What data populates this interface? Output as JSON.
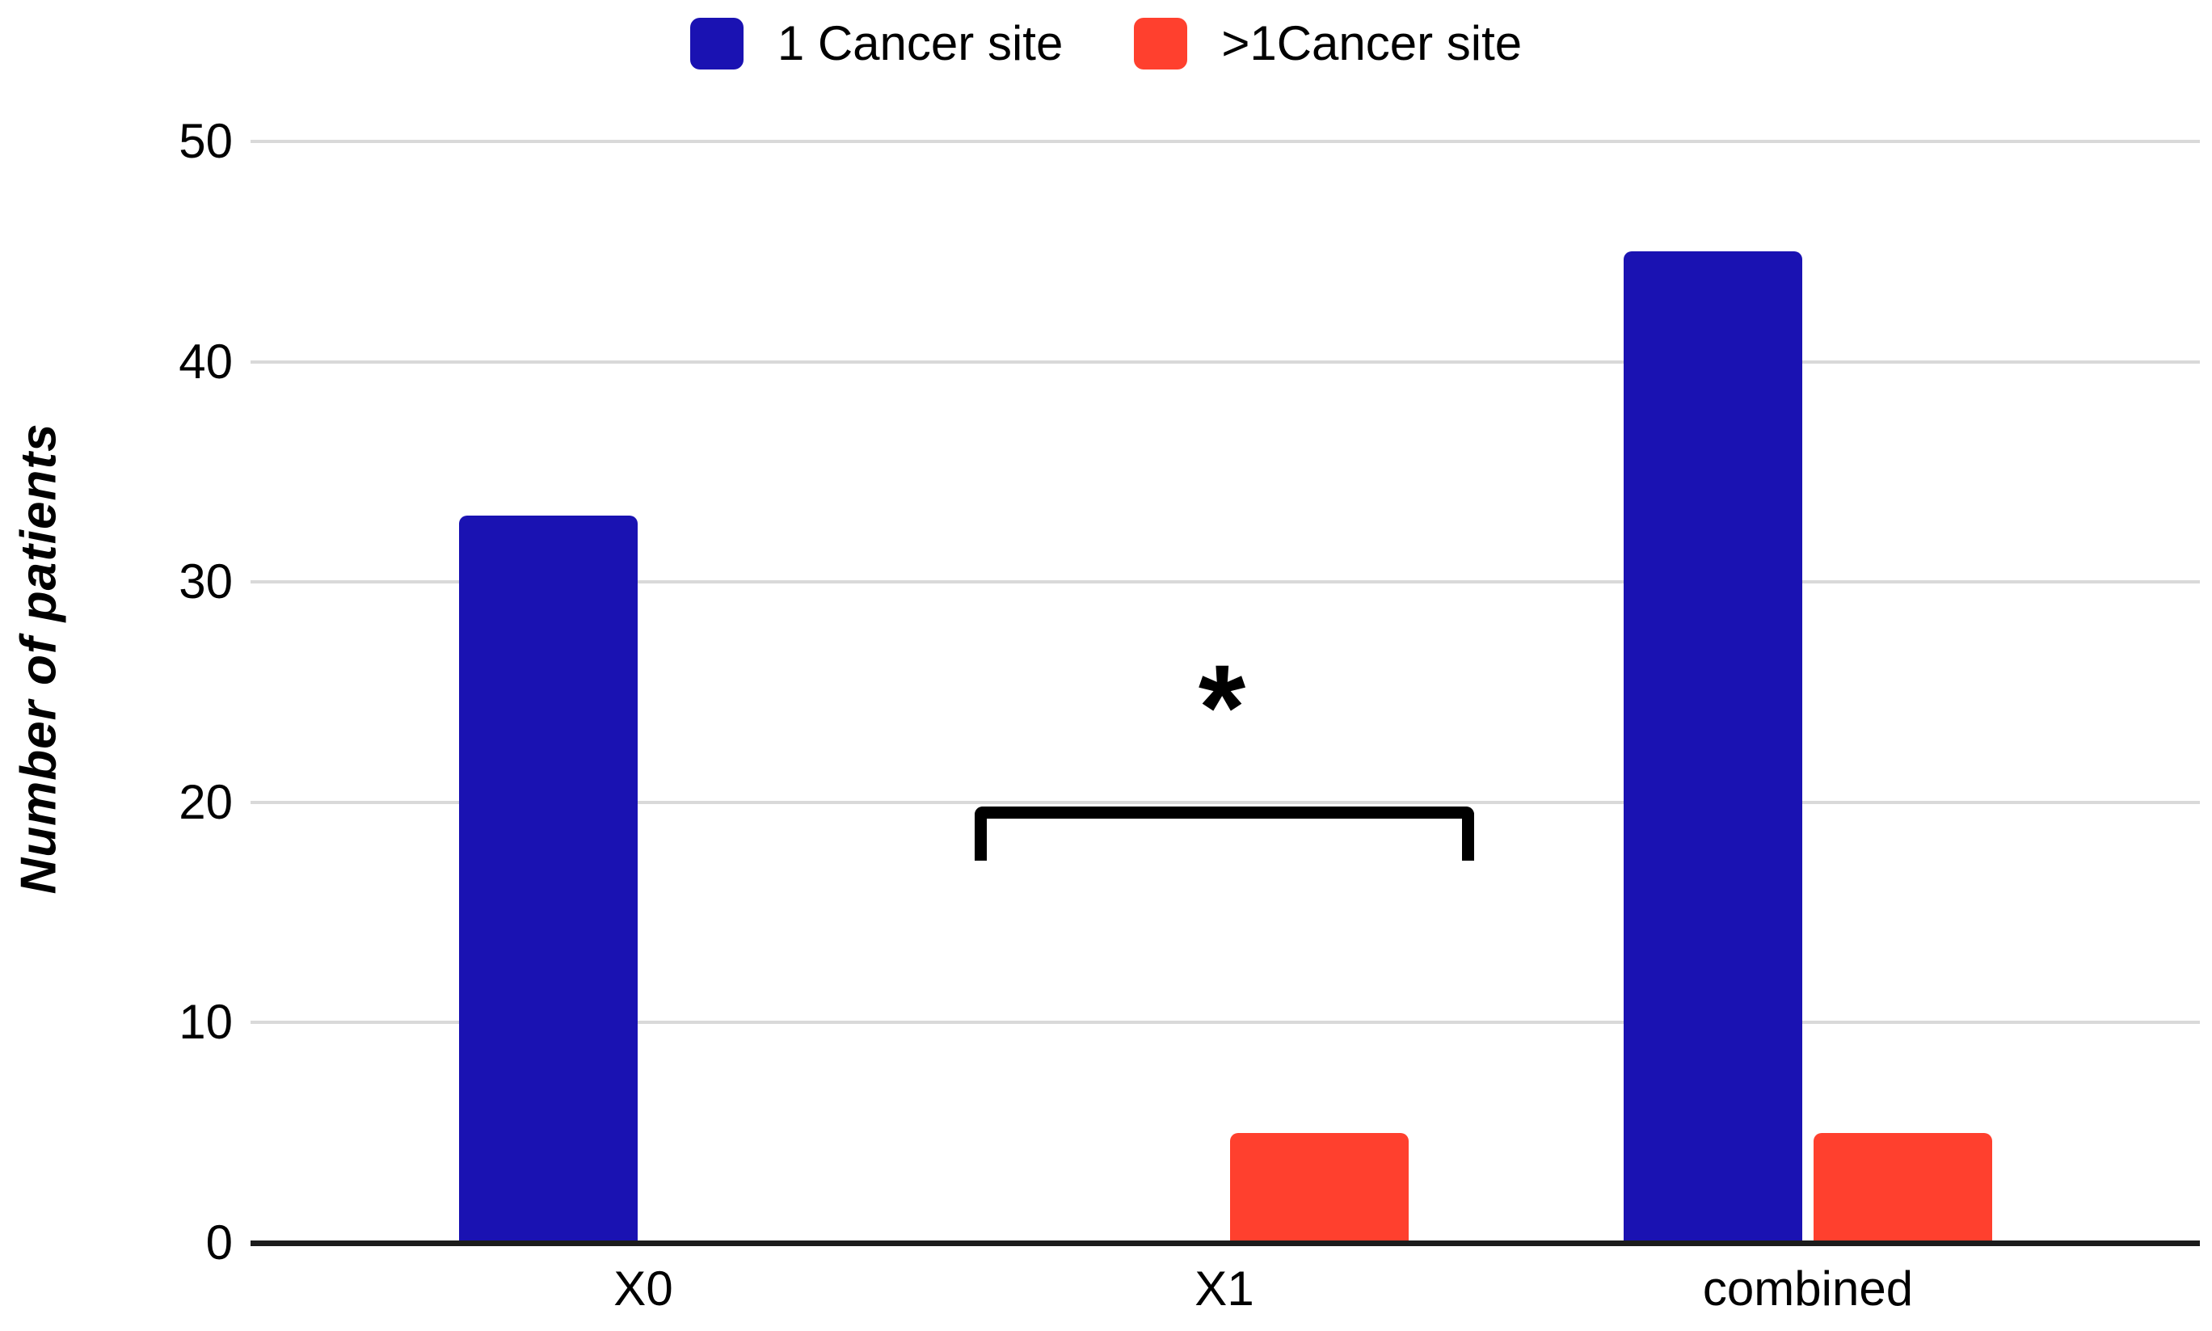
{
  "chart_data": {
    "type": "bar",
    "title": "",
    "categories": [
      "X0",
      "X1",
      "combined"
    ],
    "series": [
      {
        "name": "1 Cancer site",
        "color": "#1a12b2",
        "values": [
          33,
          0,
          45
        ]
      },
      {
        "name": ">1Cancer site",
        "color": "#ff402e",
        "values": [
          0,
          5,
          5
        ]
      }
    ],
    "xlabel": "",
    "ylabel": "Number of patients",
    "ylim": [
      0,
      50
    ],
    "yticks": [
      0,
      10,
      20,
      30,
      40,
      50
    ],
    "grid": true,
    "gridline_color": "#d9d9d9",
    "axis_color": "#1c1c1c",
    "legend_position": "top-center",
    "annotation": {
      "symbol": "*",
      "target_category": "X1",
      "meaning": "significance bracket spanning the X1 group"
    }
  }
}
